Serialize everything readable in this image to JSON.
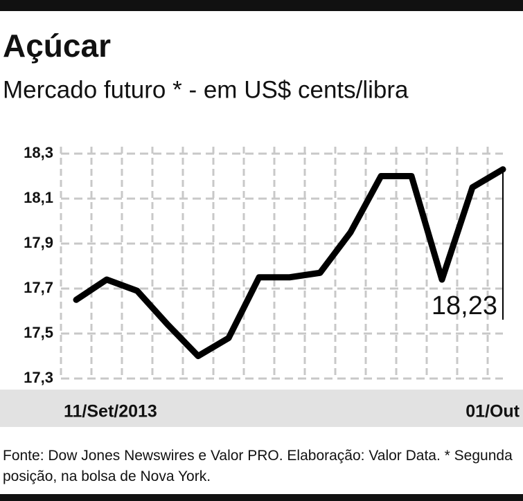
{
  "chart_data": {
    "type": "line",
    "title": "Açúcar",
    "subtitle": "Mercado futuro * - em US$ cents/libra",
    "categories": [
      "11/Set/2013",
      null,
      null,
      null,
      null,
      null,
      null,
      null,
      null,
      null,
      null,
      null,
      null,
      null,
      "01/Out"
    ],
    "series": [
      {
        "name": "Açúcar",
        "color": "#000000",
        "values": [
          17.65,
          17.74,
          17.69,
          17.54,
          17.4,
          17.48,
          17.75,
          17.75,
          17.77,
          17.95,
          18.2,
          18.2,
          17.74,
          18.15,
          18.23
        ],
        "value_labels": [
          null,
          null,
          null,
          null,
          null,
          null,
          null,
          null,
          null,
          null,
          null,
          null,
          null,
          null,
          "18,23"
        ]
      }
    ],
    "ylim": [
      17.3,
      18.3
    ],
    "yticks": [
      {
        "value": 17.3,
        "label": "17,3"
      },
      {
        "value": 17.5,
        "label": "17,5"
      },
      {
        "value": 17.7,
        "label": "17,7"
      },
      {
        "value": 17.9,
        "label": "17,9"
      },
      {
        "value": 18.1,
        "label": "18,1"
      },
      {
        "value": 18.3,
        "label": "18,3"
      }
    ],
    "grid": true,
    "source": "Fonte: Dow Jones Newswires e Valor PRO. Elaboração: Valor Data. * Segunda posição, na bolsa de Nova York."
  }
}
